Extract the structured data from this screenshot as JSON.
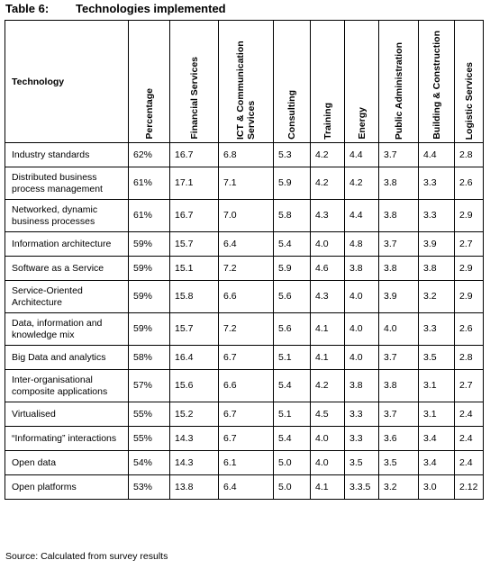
{
  "caption": {
    "number": "Table 6:",
    "title": "Technologies implemented"
  },
  "columns": [
    "Technology",
    "Percentage",
    "Financial Services",
    "ICT & Communication Services",
    "Consulting",
    "Training",
    "Energy",
    "Public Administration",
    "Building & Construction",
    "Logistic Services"
  ],
  "rows": [
    {
      "tech": "Industry standards",
      "pct": "62%",
      "vals": [
        "16.7",
        "6.8",
        "5.3",
        "4.2",
        "4.4",
        "3.7",
        "4.4",
        "2.8"
      ]
    },
    {
      "tech": "Distributed business process management",
      "pct": "61%",
      "vals": [
        "17.1",
        "7.1",
        "5.9",
        "4.2",
        "4.2",
        "3.8",
        "3.3",
        "2.6"
      ]
    },
    {
      "tech": "Networked, dynamic business processes",
      "pct": "61%",
      "vals": [
        "16.7",
        "7.0",
        "5.8",
        "4.3",
        "4.4",
        "3.8",
        "3.3",
        "2.9"
      ]
    },
    {
      "tech": "Information architecture",
      "pct": "59%",
      "vals": [
        "15.7",
        "6.4",
        "5.4",
        "4.0",
        "4.8",
        "3.7",
        "3.9",
        "2.7"
      ]
    },
    {
      "tech": "Software as a Service",
      "pct": "59%",
      "vals": [
        "15.1",
        "7.2",
        "5.9",
        "4.6",
        "3.8",
        "3.8",
        "3.8",
        "2.9"
      ]
    },
    {
      "tech": "Service-Oriented Architecture",
      "pct": "59%",
      "vals": [
        "15.8",
        "6.6",
        "5.6",
        "4.3",
        "4.0",
        "3.9",
        "3.2",
        "2.9"
      ]
    },
    {
      "tech": "Data, information and knowledge mix",
      "pct": "59%",
      "vals": [
        "15.7",
        "7.2",
        "5.6",
        "4.1",
        "4.0",
        "4.0",
        "3.3",
        "2.6"
      ]
    },
    {
      "tech": "Big Data and analytics",
      "pct": "58%",
      "vals": [
        "16.4",
        "6.7",
        "5.1",
        "4.1",
        "4.0",
        "3.7",
        "3.5",
        "2.8"
      ]
    },
    {
      "tech": "Inter-organisational composite applications",
      "pct": "57%",
      "vals": [
        "15.6",
        "6.6",
        "5.4",
        "4.2",
        "3.8",
        "3.8",
        "3.1",
        "2.7"
      ]
    },
    {
      "tech": "Virtualised",
      "pct": "55%",
      "vals": [
        "15.2",
        "6.7",
        "5.1",
        "4.5",
        "3.3",
        "3.7",
        "3.1",
        "2.4"
      ]
    },
    {
      "tech": "“Informating” interactions",
      "pct": "55%",
      "vals": [
        "14.3",
        "6.7",
        "5.4",
        "4.0",
        "3.3",
        "3.6",
        "3.4",
        "2.4"
      ]
    },
    {
      "tech": "Open data",
      "pct": "54%",
      "vals": [
        "14.3",
        "6.1",
        "5.0",
        "4.0",
        "3.5",
        "3.5",
        "3.4",
        "2.4"
      ]
    },
    {
      "tech": "Open platforms",
      "pct": "53%",
      "vals": [
        "13.8",
        "6.4",
        "5.0",
        "4.1",
        "3.3.5",
        "3.2",
        "3.0",
        "2.12"
      ]
    }
  ],
  "source": "Source: Calculated from survey results"
}
